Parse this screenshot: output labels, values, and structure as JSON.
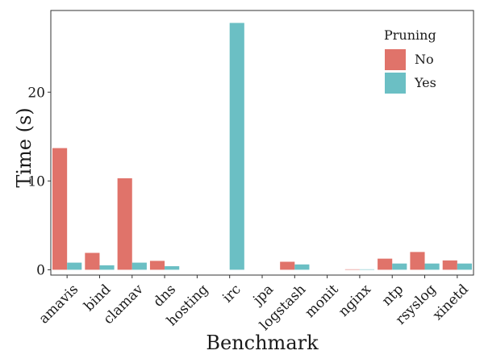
{
  "chart_data": {
    "type": "bar",
    "xlabel": "Benchmark",
    "ylabel": "Time (s)",
    "categories": [
      "amavis",
      "bind",
      "clamav",
      "dns",
      "hosting",
      "irc",
      "jpa",
      "logstash",
      "monit",
      "nginx",
      "ntp",
      "rsyslog",
      "xinetd"
    ],
    "series": [
      {
        "name": "No",
        "color": "#e0736a",
        "values": [
          13.7,
          1.9,
          10.3,
          1.0,
          0,
          0,
          0,
          0.9,
          0,
          0.05,
          1.25,
          2.0,
          1.05
        ]
      },
      {
        "name": "Yes",
        "color": "#6bbfc4",
        "values": [
          0.8,
          0.5,
          0.8,
          0.4,
          0,
          27.8,
          0,
          0.6,
          0,
          0.05,
          0.7,
          0.7,
          0.7
        ]
      }
    ],
    "ylim": [
      -0.6,
      29.2
    ],
    "yticks": [
      0,
      10,
      20
    ],
    "legend": {
      "title": "Pruning",
      "placement": "top-right"
    },
    "grid": false
  }
}
